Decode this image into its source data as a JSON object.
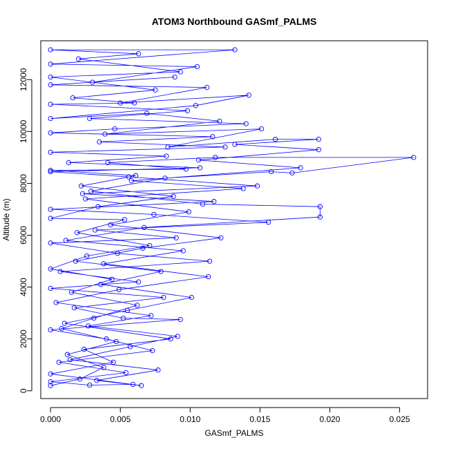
{
  "chart_data": {
    "type": "line",
    "title": "ATOM3 Northbound GASmf_PALMS",
    "xlabel": "GASmf_PALMS",
    "ylabel": "Altitude (m)",
    "xlim": [
      -0.0007,
      0.027
    ],
    "ylim": [
      -300,
      13500
    ],
    "x_ticks": [
      0.0,
      0.005,
      0.01,
      0.015,
      0.02,
      0.025
    ],
    "x_tick_labels": [
      "0.000",
      "0.005",
      "0.010",
      "0.015",
      "0.020",
      "0.025"
    ],
    "y_ticks": [
      0,
      2000,
      4000,
      6000,
      8000,
      10000,
      12000
    ],
    "y_tick_labels": [
      "0",
      "2000",
      "4000",
      "6000",
      "8000",
      "10000",
      "12000"
    ],
    "grid": false,
    "legend": "none",
    "marker": "open-circle",
    "series": [
      {
        "color": "#0000ff",
        "points": [
          [
            0.0,
            200
          ],
          [
            0.0021,
            450
          ],
          [
            0.0038,
            900
          ],
          [
            0.0012,
            1400
          ],
          [
            0.0047,
            1900
          ],
          [
            0.0008,
            2400
          ],
          [
            0.0031,
            2800
          ],
          [
            0.0062,
            3300
          ],
          [
            0.0015,
            3800
          ],
          [
            0.0044,
            4300
          ],
          [
            0.0,
            4700
          ],
          [
            0.0026,
            5200
          ],
          [
            0.0071,
            5600
          ],
          [
            0.0019,
            6100
          ],
          [
            0.0053,
            6600
          ],
          [
            0.0,
            6650
          ],
          [
            0.0034,
            7100
          ],
          [
            0.0088,
            7500
          ],
          [
            0.0022,
            7900
          ],
          [
            0.0061,
            8300
          ],
          [
            0.0,
            8500
          ],
          [
            0.0097,
            8550
          ],
          [
            0.0041,
            8800
          ],
          [
            0.0118,
            9000
          ],
          [
            0.026,
            9000
          ],
          [
            0.0173,
            8400
          ],
          [
            0.0158,
            8450
          ],
          [
            0.0082,
            8200
          ],
          [
            0.0029,
            7700
          ],
          [
            0.0109,
            7200
          ],
          [
            0.0193,
            7100
          ],
          [
            0.0193,
            6700
          ],
          [
            0.0067,
            6300
          ],
          [
            0.0011,
            5800
          ],
          [
            0.0095,
            5400
          ],
          [
            0.0038,
            4900
          ],
          [
            0.0113,
            4400
          ],
          [
            0.0049,
            3900
          ],
          [
            0.0004,
            3400
          ],
          [
            0.0072,
            2900
          ],
          [
            0.0027,
            2500
          ],
          [
            0.0091,
            2100
          ],
          [
            0.0057,
            1700
          ],
          [
            0.0014,
            1200
          ],
          [
            0.0077,
            800
          ],
          [
            0.0033,
            400
          ],
          [
            0.0065,
            200
          ],
          [
            0.0,
            650
          ],
          [
            0.0045,
            1100
          ],
          [
            0.0024,
            1600
          ],
          [
            0.0086,
            2000
          ],
          [
            0.001,
            2600
          ],
          [
            0.0055,
            3100
          ],
          [
            0.0101,
            3600
          ],
          [
            0.0036,
            4100
          ],
          [
            0.0079,
            4600
          ],
          [
            0.0018,
            5000
          ],
          [
            0.0066,
            5500
          ],
          [
            0.0122,
            5900
          ],
          [
            0.0043,
            6400
          ],
          [
            0.0099,
            6900
          ],
          [
            0.0025,
            7400
          ],
          [
            0.0138,
            7800
          ],
          [
            0.0058,
            8100
          ],
          [
            0.0179,
            8600
          ],
          [
            0.0106,
            8900
          ],
          [
            0.0192,
            9300
          ],
          [
            0.0132,
            9500
          ],
          [
            0.0192,
            9700
          ],
          [
            0.0161,
            9700
          ],
          [
            0.0084,
            9400
          ],
          [
            0.0151,
            10100
          ],
          [
            0.0039,
            9900
          ],
          [
            0.0121,
            10400
          ],
          [
            0.0069,
            10700
          ],
          [
            0.0,
            10500
          ],
          [
            0.0104,
            11000
          ],
          [
            0.0142,
            11400
          ],
          [
            0.005,
            11100
          ],
          [
            0.0112,
            11700
          ],
          [
            0.0,
            11800
          ],
          [
            0.0089,
            12100
          ],
          [
            0.003,
            11900
          ],
          [
            0.0105,
            12500
          ],
          [
            0.0,
            12600
          ],
          [
            0.0132,
            13150
          ],
          [
            0.0,
            13150
          ],
          [
            0.0063,
            13000
          ],
          [
            0.002,
            12800
          ],
          [
            0.0093,
            12300
          ],
          [
            0.0,
            12100
          ],
          [
            0.0075,
            11600
          ],
          [
            0.0016,
            11300
          ],
          [
            0.006,
            11100
          ],
          [
            0.0,
            11050
          ],
          [
            0.0098,
            10800
          ],
          [
            0.0028,
            10500
          ],
          [
            0.014,
            10300
          ],
          [
            0.0046,
            10100
          ],
          [
            0.0,
            9950
          ],
          [
            0.0116,
            9800
          ],
          [
            0.0035,
            9600
          ],
          [
            0.0125,
            9400
          ],
          [
            0.0,
            9200
          ],
          [
            0.0083,
            9050
          ],
          [
            0.0013,
            8800
          ],
          [
            0.0107,
            8600
          ],
          [
            0.0,
            8450
          ],
          [
            0.0056,
            8250
          ],
          [
            0.0148,
            7900
          ],
          [
            0.0023,
            7600
          ],
          [
            0.0117,
            7300
          ],
          [
            0.0,
            7000
          ],
          [
            0.0074,
            6800
          ],
          [
            0.0156,
            6500
          ],
          [
            0.0032,
            6200
          ],
          [
            0.009,
            5900
          ],
          [
            0.0,
            5700
          ],
          [
            0.0048,
            5300
          ],
          [
            0.0114,
            5000
          ],
          [
            0.0007,
            4600
          ],
          [
            0.0063,
            4200
          ],
          [
            0.0,
            3950
          ],
          [
            0.0081,
            3600
          ],
          [
            0.0017,
            3200
          ],
          [
            0.0052,
            2800
          ],
          [
            0.0093,
            2750
          ],
          [
            0.0,
            2350
          ],
          [
            0.004,
            2000
          ],
          [
            0.0073,
            1550
          ],
          [
            0.0006,
            1100
          ],
          [
            0.0054,
            700
          ],
          [
            0.0,
            350
          ],
          [
            0.0028,
            220
          ],
          [
            0.0059,
            250
          ]
        ]
      }
    ]
  }
}
